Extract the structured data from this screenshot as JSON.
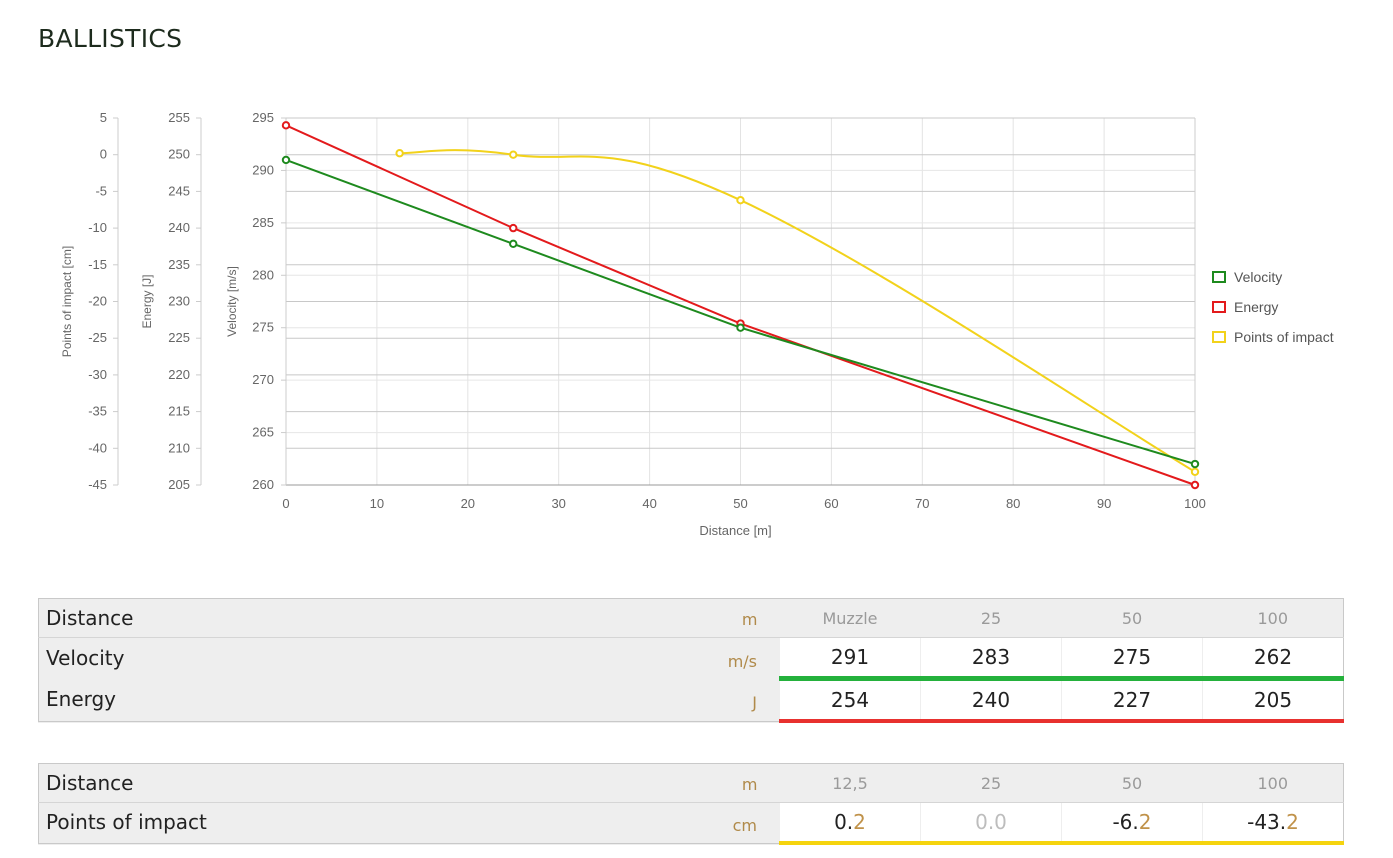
{
  "title": "BALLISTICS",
  "chart_data": {
    "type": "line",
    "xlabel": "Distance [m]",
    "xlim": [
      0,
      100
    ],
    "xticks": [
      0,
      10,
      20,
      30,
      40,
      50,
      60,
      70,
      80,
      90,
      100
    ],
    "axes": {
      "velocity": {
        "label": "Velocity [m/s]",
        "ylim": [
          260,
          295
        ],
        "ticks": [
          260,
          265,
          270,
          275,
          280,
          285,
          290,
          295
        ]
      },
      "energy": {
        "label": "Energy [J]",
        "ylim": [
          205,
          255
        ],
        "ticks": [
          205,
          210,
          215,
          220,
          225,
          230,
          235,
          240,
          245,
          250,
          255
        ]
      },
      "poi": {
        "label": "Points of impact [cm]",
        "ylim": [
          -45,
          5
        ],
        "ticks": [
          -45,
          -40,
          -35,
          -30,
          -25,
          -20,
          -15,
          -10,
          -5,
          0,
          5
        ]
      }
    },
    "series": [
      {
        "name": "Velocity",
        "axis": "velocity",
        "color": "#1e8a1e",
        "x": [
          0,
          25,
          50,
          100
        ],
        "y": [
          291,
          283,
          275,
          262
        ]
      },
      {
        "name": "Energy",
        "axis": "energy",
        "color": "#e31a1c",
        "x": [
          0,
          25,
          50,
          100
        ],
        "y": [
          254,
          240,
          227,
          205
        ]
      },
      {
        "name": "Points of impact",
        "axis": "poi",
        "color": "#f2d21b",
        "x": [
          12.5,
          25,
          50,
          100
        ],
        "y": [
          0.2,
          0.0,
          -6.2,
          -43.2
        ]
      }
    ],
    "legend": "right",
    "grid": true
  },
  "table1": {
    "header": {
      "label": "Distance",
      "unit": "m",
      "cols": [
        "Muzzle",
        "25",
        "50",
        "100"
      ]
    },
    "velocity": {
      "label": "Velocity",
      "unit": "m/s",
      "values": [
        "291",
        "283",
        "275",
        "262"
      ]
    },
    "energy": {
      "label": "Energy",
      "unit": "J",
      "values": [
        "254",
        "240",
        "227",
        "205"
      ]
    }
  },
  "table2": {
    "header": {
      "label": "Distance",
      "unit": "m",
      "cols": [
        "12,5",
        "25",
        "50",
        "100"
      ]
    },
    "poi": {
      "label": "Points of impact",
      "unit": "cm",
      "values": [
        {
          "int": "0.",
          "dec": "2"
        },
        {
          "int": "0.0",
          "dec": ""
        },
        {
          "int": "-6.",
          "dec": "2"
        },
        {
          "int": "-43.",
          "dec": "2"
        }
      ]
    }
  }
}
